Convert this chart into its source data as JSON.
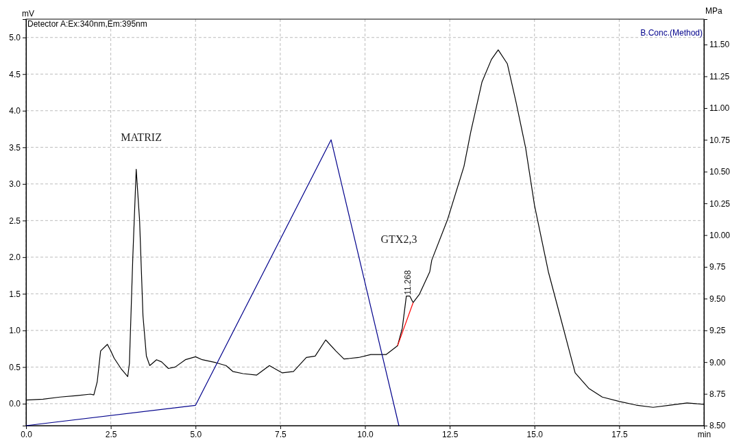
{
  "chart_data": {
    "type": "line",
    "ylabel": "mV",
    "y2label": "MPa",
    "xlim": [
      0,
      20
    ],
    "xticks": [
      {
        "value": 0,
        "label": "0.0"
      },
      2.5,
      {
        "value": 5,
        "label": "5.0"
      },
      7.5,
      {
        "value": 10,
        "label": "10.0"
      },
      12.5,
      {
        "value": 15,
        "label": "15.0"
      },
      17.5,
      {
        "value": 20,
        "label": "min"
      }
    ],
    "ylim": [
      -0.3,
      5.25
    ],
    "yticks": [
      {
        "value": 0,
        "label": "0.0"
      },
      0.5,
      {
        "value": 1,
        "label": "1.0"
      },
      1.5,
      {
        "value": 2,
        "label": "2.0"
      },
      2.5,
      {
        "value": 3,
        "label": "3.0"
      },
      3.5,
      {
        "value": 4,
        "label": "4.0"
      },
      4.5,
      {
        "value": 5,
        "label": "5.0"
      }
    ],
    "y2lim": [
      8.5,
      11.7
    ],
    "y2ticks": [
      {
        "value": 8.5,
        "label": "8.50"
      },
      8.75,
      {
        "value": 9,
        "label": "9.00"
      },
      9.25,
      {
        "value": 9.5,
        "label": "9.50"
      },
      9.75,
      {
        "value": 10,
        "label": "10.00"
      },
      10.25,
      {
        "value": 10.5,
        "label": "10.50"
      },
      10.75,
      {
        "value": 11,
        "label": "11.00"
      },
      11.25,
      {
        "value": 11.5,
        "label": "11.50"
      }
    ],
    "grid": true,
    "legend": "top",
    "series": [
      {
        "name": "Detector A:Ex:340nm,Em:395nm",
        "color": "#000000",
        "x": [
          0,
          0.5,
          1,
          1.5,
          1.9,
          2,
          2.1,
          2.2,
          2.4,
          2.5,
          2.6,
          2.8,
          3,
          3.05,
          3.15,
          3.25,
          3.35,
          3.45,
          3.55,
          3.65,
          3.85,
          4,
          4.2,
          4.4,
          4.7,
          5,
          5.2,
          5.6,
          5.9,
          6.1,
          6.4,
          6.8,
          7.18,
          7.56,
          7.89,
          8.27,
          8.53,
          8.84,
          9.14,
          9.38,
          9.81,
          10.17,
          10.62,
          10.96,
          11.1,
          11.22,
          11.32,
          11.42,
          11.6,
          11.91,
          11.97,
          12.44,
          12.92,
          13.12,
          13.45,
          13.73,
          13.93,
          14.2,
          14.46,
          14.74,
          15,
          15.41,
          15.8,
          16.2,
          16.6,
          17,
          17.5,
          18,
          18.5,
          19,
          19.5,
          20
        ],
        "values": [
          0.05,
          0.06,
          0.09,
          0.11,
          0.13,
          0.12,
          0.3,
          0.72,
          0.81,
          0.72,
          0.62,
          0.48,
          0.37,
          0.55,
          2.0,
          3.2,
          2.5,
          1.2,
          0.65,
          0.52,
          0.6,
          0.57,
          0.48,
          0.5,
          0.6,
          0.64,
          0.6,
          0.56,
          0.52,
          0.44,
          0.41,
          0.39,
          0.52,
          0.42,
          0.44,
          0.63,
          0.65,
          0.87,
          0.72,
          0.61,
          0.63,
          0.67,
          0.67,
          0.79,
          1.03,
          1.47,
          1.47,
          1.38,
          1.49,
          1.8,
          1.96,
          2.52,
          3.24,
          3.71,
          4.39,
          4.7,
          4.83,
          4.64,
          4.11,
          3.49,
          2.71,
          1.8,
          1.12,
          0.42,
          0.21,
          0.09,
          0.03,
          -0.02,
          -0.05,
          -0.02,
          0.01,
          -0.01
        ]
      },
      {
        "color": "#ff0000",
        "x": [
          10.96,
          11.42
        ],
        "values": [
          0.79,
          1.38
        ]
      },
      {
        "name": "B.Conc.(Method)",
        "color": "#00008b",
        "axis": "y2",
        "x": [
          0,
          5,
          9,
          11
        ],
        "values": [
          8.5,
          8.66,
          10.75,
          8.5
        ]
      }
    ],
    "annotations": [
      "MATRIZ",
      "GTX2,3",
      {
        "text": "11.268",
        "x": 11.268,
        "y": 1.45
      }
    ]
  }
}
